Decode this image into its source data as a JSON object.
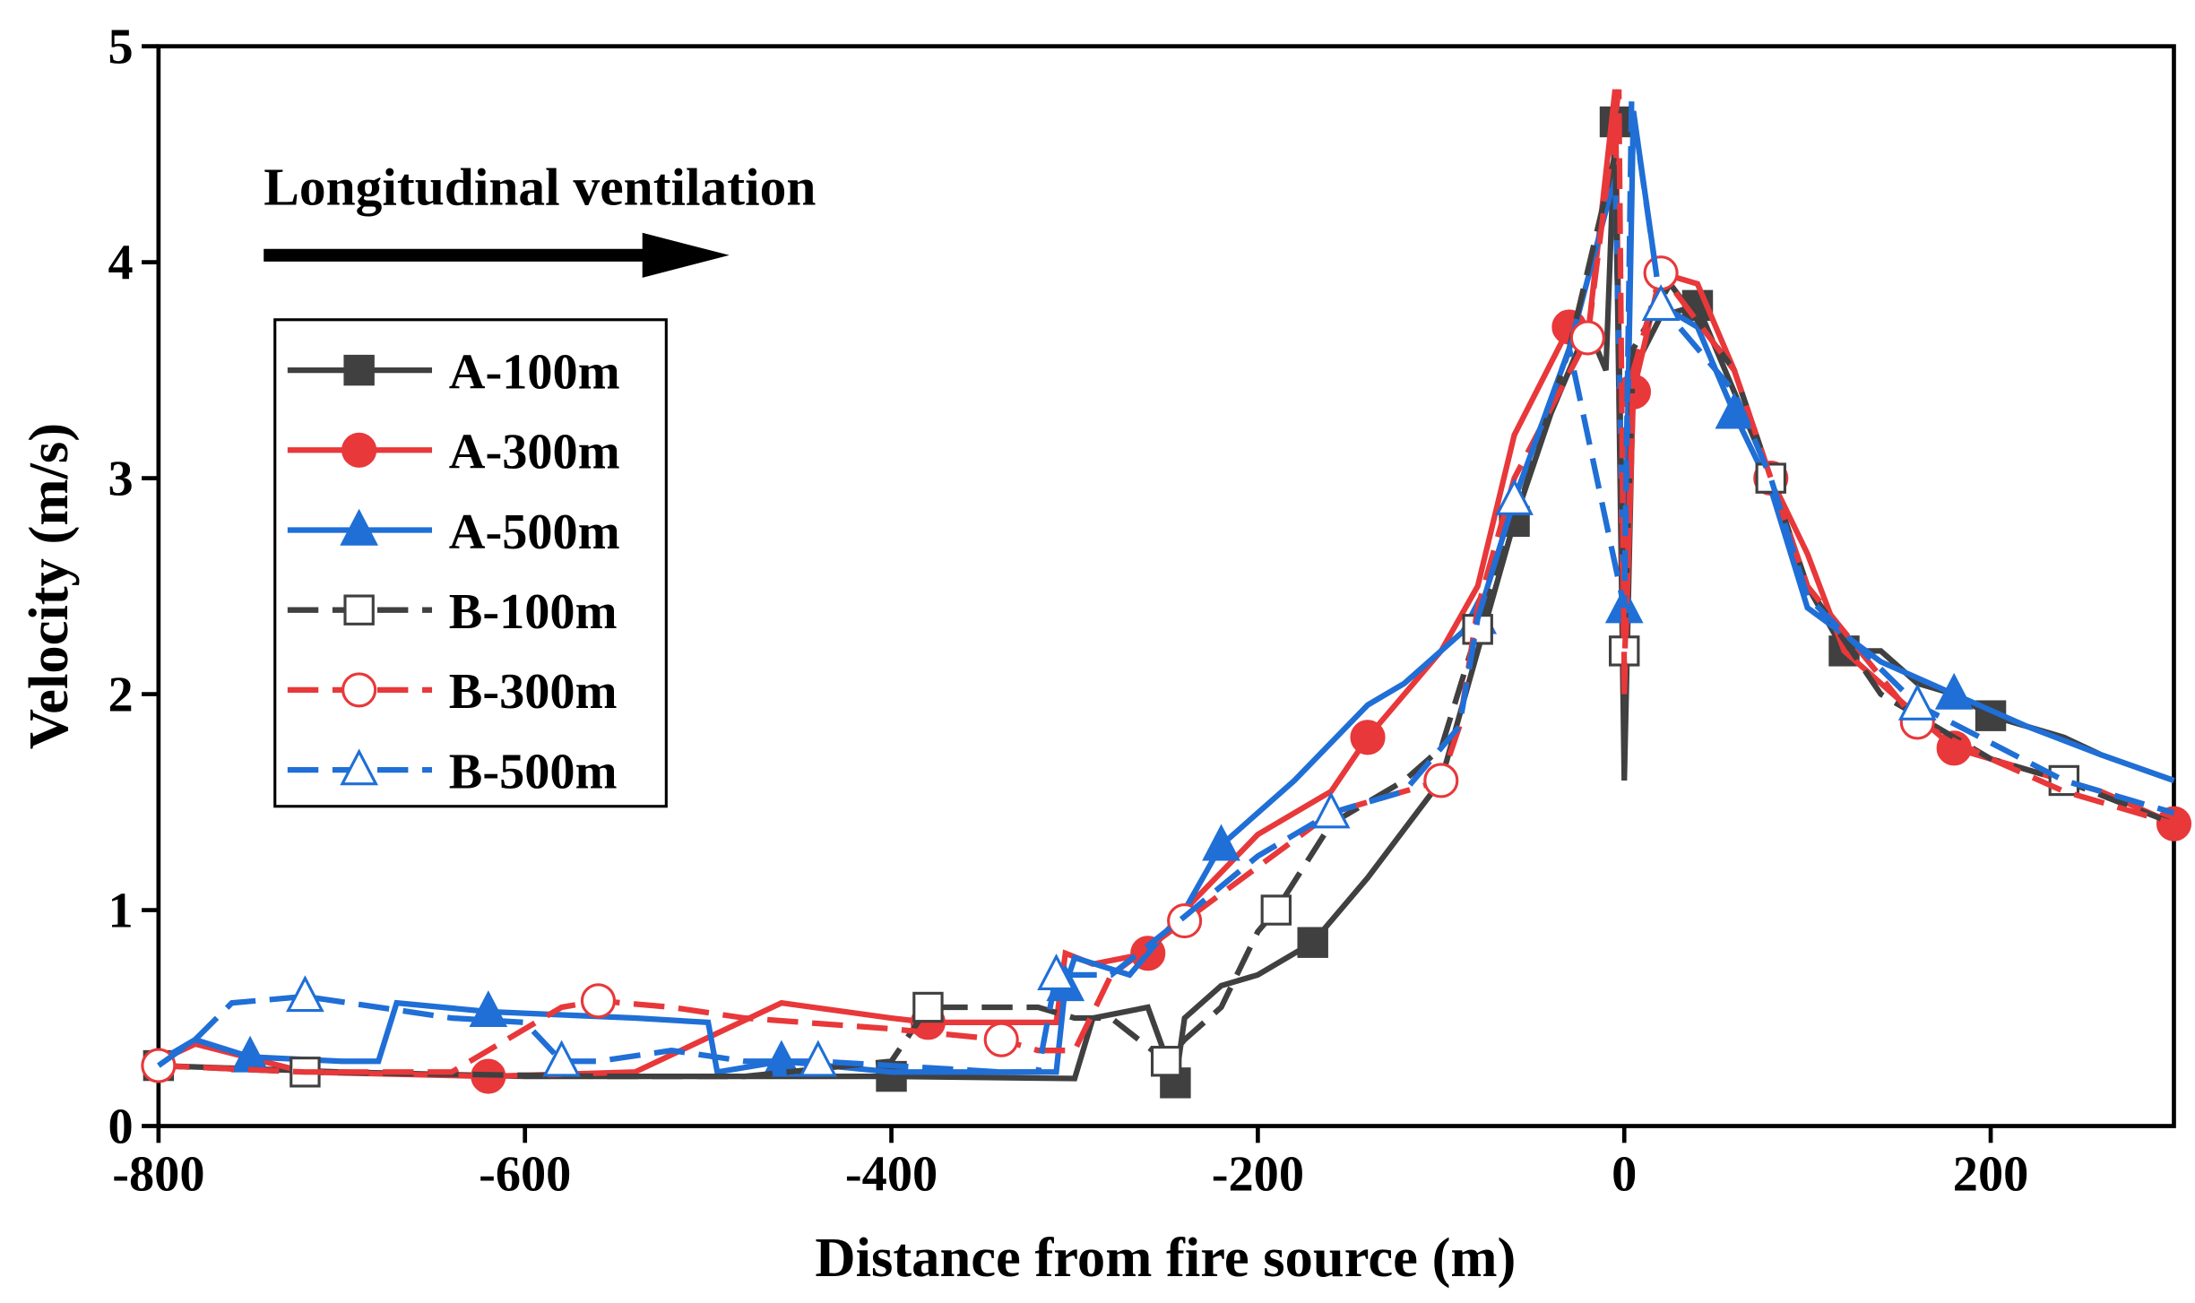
{
  "chart_data": {
    "type": "line",
    "annotation": "Longitudinal ventilation",
    "x_label": "Distance from fire source (m)",
    "y_label": "Velocity (m/s)",
    "xlim": [
      -800,
      300
    ],
    "ylim": [
      0,
      5
    ],
    "xticks": [
      -800,
      -600,
      -400,
      -200,
      0,
      200
    ],
    "yticks": [
      0,
      1,
      2,
      3,
      4,
      5
    ],
    "legend": "upper left",
    "series": [
      {
        "name": "A-100m",
        "color": "#404040",
        "linestyle": "solid",
        "marker": "square",
        "filled": true,
        "x": [
          -800,
          -700,
          -600,
          -500,
          -400,
          -300,
          -290,
          -260,
          -245,
          -240,
          -220,
          -200,
          -170,
          -140,
          -100,
          -80,
          -60,
          -40,
          -20,
          -10,
          -5,
          0,
          5,
          20,
          40,
          60,
          80,
          100,
          120,
          140,
          160,
          180,
          200,
          240,
          260,
          300
        ],
        "values": [
          0.28,
          0.25,
          0.23,
          0.23,
          0.23,
          0.22,
          0.5,
          0.55,
          0.2,
          0.5,
          0.65,
          0.7,
          0.85,
          1.15,
          1.6,
          2.2,
          2.8,
          3.3,
          3.7,
          3.5,
          4.65,
          1.6,
          3.5,
          3.75,
          3.8,
          3.4,
          3.0,
          2.5,
          2.2,
          2.2,
          2.05,
          2.0,
          1.9,
          1.8,
          1.72,
          1.6
        ]
      },
      {
        "name": "A-300m",
        "color": "#e8383a",
        "linestyle": "solid",
        "marker": "circle",
        "filled": true,
        "x": [
          -800,
          -780,
          -720,
          -620,
          -540,
          -460,
          -400,
          -380,
          -310,
          -305,
          -290,
          -260,
          -240,
          -200,
          -160,
          -140,
          -100,
          -80,
          -60,
          -30,
          -20,
          -5,
          0,
          5,
          20,
          40,
          60,
          80,
          100,
          120,
          160,
          180,
          200,
          240,
          260,
          300
        ],
        "values": [
          0.3,
          0.38,
          0.25,
          0.23,
          0.25,
          0.57,
          0.5,
          0.48,
          0.48,
          0.8,
          0.75,
          0.8,
          1.0,
          1.35,
          1.55,
          1.8,
          2.2,
          2.5,
          3.2,
          3.7,
          3.65,
          4.8,
          2.0,
          3.4,
          3.95,
          3.9,
          3.5,
          3.0,
          2.65,
          2.2,
          1.9,
          1.75,
          1.7,
          1.6,
          1.55,
          1.4
        ]
      },
      {
        "name": "A-500m",
        "color": "#1f6fd6",
        "linestyle": "solid",
        "marker": "triangle",
        "filled": true,
        "x": [
          -800,
          -780,
          -750,
          -700,
          -680,
          -670,
          -620,
          -540,
          -500,
          -495,
          -460,
          -400,
          -320,
          -310,
          -305,
          -300,
          -270,
          -240,
          -220,
          -180,
          -140,
          -120,
          -80,
          -60,
          -30,
          -5,
          0,
          5,
          20,
          40,
          60,
          80,
          100,
          140,
          180,
          220,
          260,
          300
        ],
        "values": [
          0.3,
          0.4,
          0.32,
          0.3,
          0.3,
          0.57,
          0.53,
          0.5,
          0.48,
          0.25,
          0.3,
          0.25,
          0.25,
          0.25,
          0.65,
          0.78,
          0.7,
          1.0,
          1.3,
          1.6,
          1.95,
          2.05,
          2.35,
          2.9,
          3.6,
          4.4,
          2.4,
          4.7,
          3.8,
          3.7,
          3.3,
          2.95,
          2.4,
          2.15,
          2.0,
          1.85,
          1.72,
          1.6
        ]
      },
      {
        "name": "B-100m",
        "color": "#404040",
        "linestyle": "dashed",
        "marker": "square",
        "filled": false,
        "x": [
          -800,
          -720,
          -560,
          -480,
          -400,
          -380,
          -320,
          -300,
          -280,
          -250,
          -240,
          -220,
          -200,
          -190,
          -160,
          -120,
          -100,
          -80,
          -60,
          -30,
          -5,
          0,
          5,
          25,
          60,
          80,
          100,
          140,
          200,
          240,
          300
        ],
        "values": [
          0.28,
          0.25,
          0.23,
          0.23,
          0.3,
          0.55,
          0.55,
          0.5,
          0.5,
          0.3,
          0.4,
          0.55,
          0.9,
          1.0,
          1.4,
          1.6,
          1.75,
          2.3,
          2.8,
          3.6,
          4.5,
          2.2,
          3.6,
          3.9,
          3.5,
          3.0,
          2.5,
          2.0,
          1.7,
          1.6,
          1.4
        ]
      },
      {
        "name": "B-300m",
        "color": "#e8383a",
        "linestyle": "dashed",
        "marker": "circle",
        "filled": false,
        "x": [
          -800,
          -720,
          -640,
          -580,
          -560,
          -520,
          -480,
          -400,
          -340,
          -320,
          -300,
          -280,
          -240,
          -200,
          -160,
          -120,
          -100,
          -90,
          -80,
          -60,
          -20,
          -3,
          0,
          5,
          20,
          60,
          80,
          100,
          160,
          200,
          240,
          300
        ],
        "values": [
          0.28,
          0.25,
          0.25,
          0.55,
          0.58,
          0.55,
          0.5,
          0.45,
          0.4,
          0.35,
          0.35,
          0.7,
          0.95,
          1.2,
          1.45,
          1.55,
          1.6,
          1.85,
          2.4,
          3.0,
          3.65,
          4.8,
          2.1,
          3.5,
          3.95,
          3.5,
          3.0,
          2.5,
          1.87,
          1.7,
          1.55,
          1.4
        ]
      },
      {
        "name": "B-500m",
        "color": "#1f6fd6",
        "linestyle": "dashed",
        "marker": "triangle",
        "filled": false,
        "x": [
          -800,
          -780,
          -760,
          -720,
          -680,
          -640,
          -600,
          -580,
          -560,
          -520,
          -480,
          -440,
          -400,
          -340,
          -320,
          -310,
          -280,
          -240,
          -200,
          -160,
          -120,
          -90,
          -80,
          -60,
          -30,
          0,
          4,
          20,
          60,
          80,
          100,
          160,
          240,
          300
        ],
        "values": [
          0.28,
          0.4,
          0.57,
          0.6,
          0.55,
          0.5,
          0.48,
          0.3,
          0.3,
          0.35,
          0.3,
          0.3,
          0.28,
          0.25,
          0.25,
          0.7,
          0.7,
          0.97,
          1.25,
          1.45,
          1.55,
          1.85,
          2.35,
          2.9,
          3.6,
          2.4,
          4.75,
          3.8,
          3.4,
          3.0,
          2.45,
          1.95,
          1.6,
          1.45
        ]
      }
    ]
  }
}
